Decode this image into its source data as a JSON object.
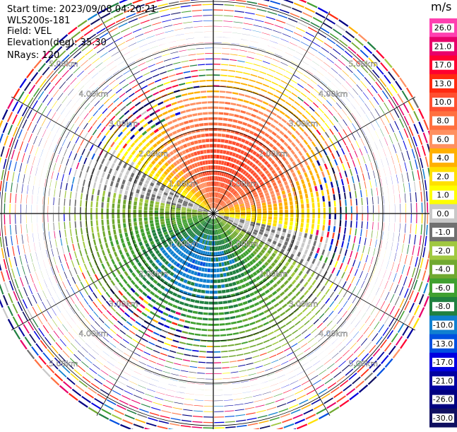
{
  "header": {
    "start_time": "Start time: 2023/09/08 04:20:21",
    "instrument": "WLS200s-181",
    "field": "Field: VEL",
    "elevation": "Elevation(deg): 35.30",
    "nrays": "NRays: 120"
  },
  "colorbar": {
    "unit": "m/s",
    "ticks": [
      "26.0",
      "21.0",
      "17.0",
      "13.0",
      "10.0",
      "8.0",
      "6.0",
      "4.0",
      "2.0",
      "1.0",
      "0.0",
      "-1.0",
      "-2.0",
      "-4.0",
      "-6.0",
      "-8.0",
      "-10.0",
      "-13.0",
      "-17.0",
      "-21.0",
      "-26.0",
      "-30.0"
    ],
    "colors": [
      "#ff40b0",
      "#e8006a",
      "#ff0030",
      "#ff2a10",
      "#ff5030",
      "#ff7040",
      "#ff9060",
      "#ffb000",
      "#ffe000",
      "#ffff00",
      "#c8c8c8",
      "#707070",
      "#a0c840",
      "#70a830",
      "#40a030",
      "#208040",
      "#1080d0",
      "#0050e0",
      "#0000e0",
      "#0000a0",
      "#000080",
      "#101060"
    ]
  },
  "chart_data": {
    "type": "heatmap",
    "subtype": "polar PPI",
    "field": "VEL",
    "units": "m/s",
    "value_range": [
      -30,
      26
    ],
    "nrays": 120,
    "elevation_deg": 35.3,
    "range_rings_km": [
      1.0,
      2.0,
      3.0,
      4.0,
      5.0
    ],
    "range_ring_labels": [
      "1.00km",
      "2.00km",
      "3.00km",
      "4.00km",
      "5.00km"
    ],
    "max_range_km": 5.5,
    "pattern": {
      "receding_sector_azimuth_deg": 20,
      "receding_peak_ms": 13,
      "approaching_sector_azimuth_deg": 200,
      "approaching_peak_ms": -10,
      "valid_range_km": 3.5
    }
  }
}
